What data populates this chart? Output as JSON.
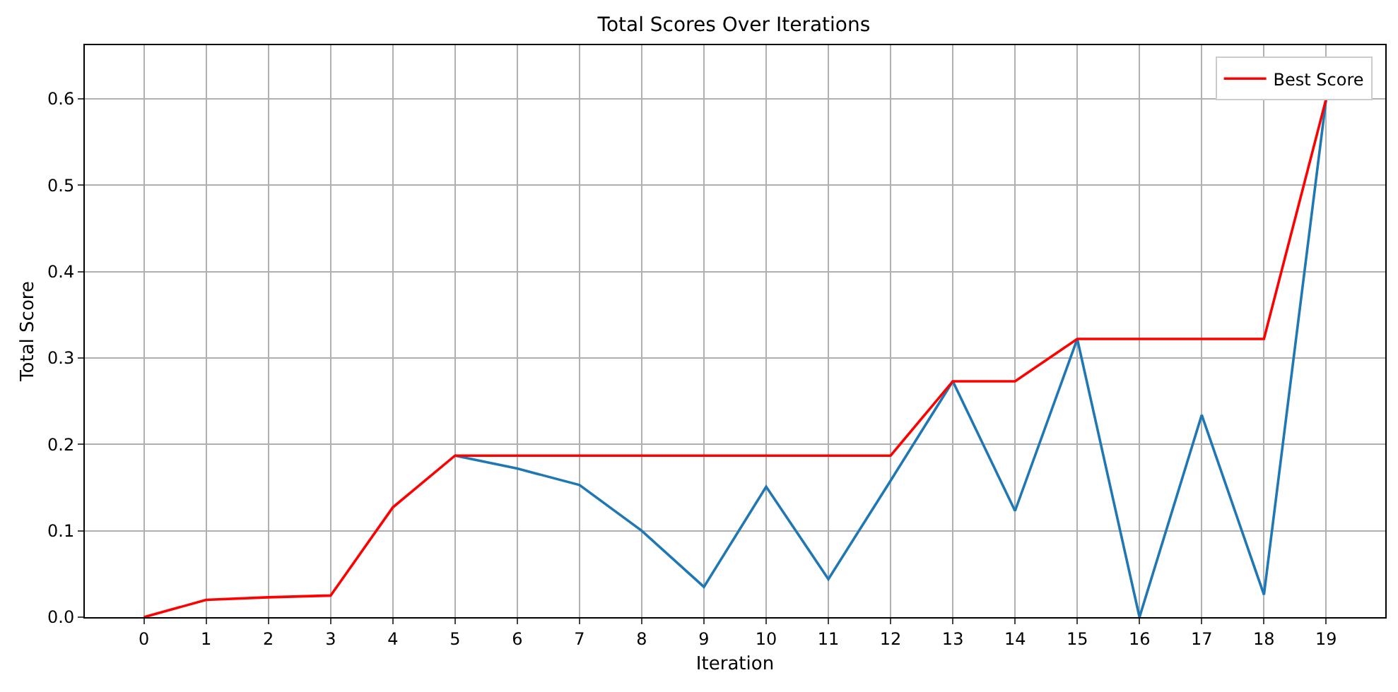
{
  "chart_data": {
    "type": "line",
    "title": "Total Scores Over Iterations",
    "xlabel": "Iteration",
    "ylabel": "Total Score",
    "x": [
      0,
      1,
      2,
      3,
      4,
      5,
      6,
      7,
      8,
      9,
      10,
      11,
      12,
      13,
      14,
      15,
      16,
      17,
      18,
      19
    ],
    "series": [
      {
        "color": "#1f77b4",
        "values": [
          null,
          null,
          null,
          null,
          null,
          0.187,
          0.172,
          0.153,
          0.1,
          0.035,
          0.151,
          0.044,
          0.158,
          0.273,
          0.123,
          0.322,
          0,
          0.234,
          0.026,
          0.6
        ]
      },
      {
        "name": "Best Score",
        "color": "#ff0000",
        "values": [
          0,
          0.02,
          0.023,
          0.025,
          0.127,
          0.187,
          0.187,
          0.187,
          0.187,
          0.187,
          0.187,
          0.187,
          0.187,
          0.273,
          0.273,
          0.322,
          0.322,
          0.322,
          0.322,
          0.6
        ]
      }
    ],
    "xlim": [
      -0.95,
      19.95
    ],
    "xticks": [
      0,
      1,
      2,
      3,
      4,
      5,
      6,
      7,
      8,
      9,
      10,
      11,
      12,
      13,
      14,
      15,
      16,
      17,
      18,
      19
    ],
    "ylim": [
      0,
      0.662
    ],
    "yticks": [
      {
        "value": 0,
        "label": "0.0"
      },
      0.1,
      0.2,
      0.3,
      0.4,
      0.5,
      0.6
    ],
    "grid": true,
    "legend": "top right",
    "line_style": "solid",
    "marker": "none"
  }
}
